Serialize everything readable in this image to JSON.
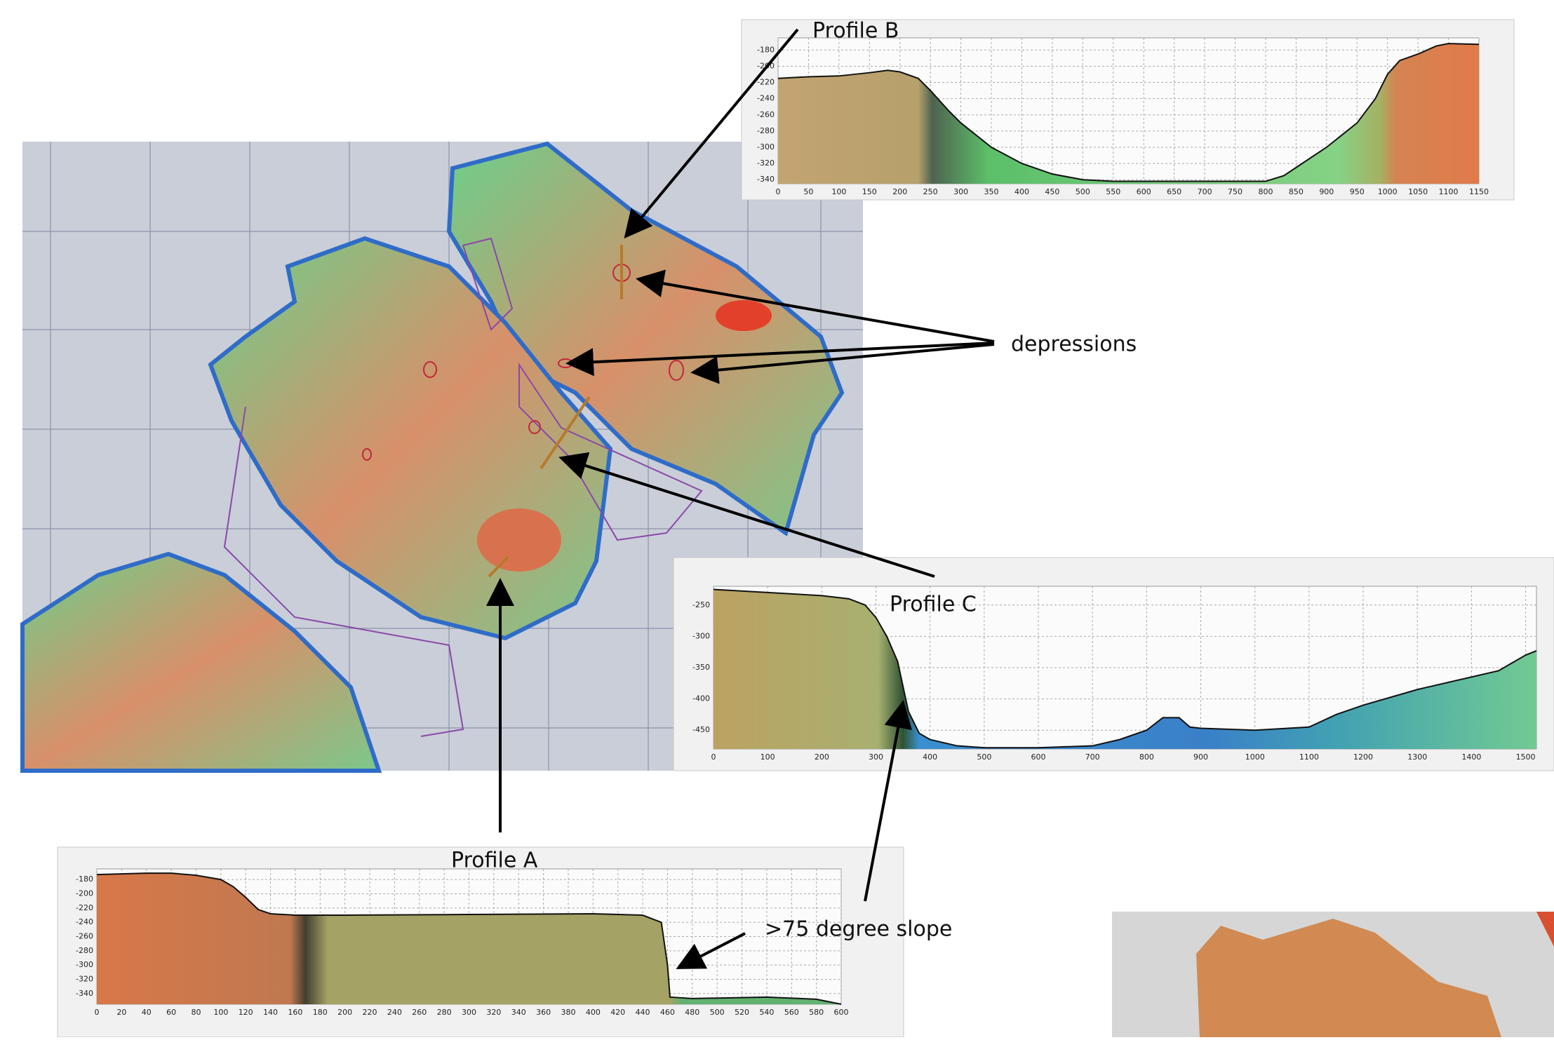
{
  "annotations": [
    "depressions",
    ">75 degree slope"
  ],
  "chart_data": [
    {
      "type": "area",
      "title": "Profile B",
      "x": [
        0,
        50,
        100,
        150,
        180,
        200,
        230,
        250,
        280,
        300,
        350,
        400,
        450,
        500,
        550,
        600,
        700,
        800,
        830,
        850,
        900,
        950,
        980,
        1000,
        1020,
        1050,
        1080,
        1100,
        1150
      ],
      "values": [
        -215,
        -213,
        -212,
        -208,
        -205,
        -207,
        -215,
        -230,
        -255,
        -270,
        -300,
        -320,
        -333,
        -340,
        -342,
        -342,
        -342,
        -342,
        -335,
        -325,
        -300,
        -270,
        -240,
        -210,
        -193,
        -185,
        -175,
        -172,
        -173
      ],
      "xlim": [
        0,
        1150
      ],
      "ylim": [
        -345,
        -165
      ],
      "xticks": [
        0,
        50,
        100,
        150,
        200,
        250,
        300,
        350,
        400,
        450,
        500,
        550,
        600,
        650,
        700,
        750,
        800,
        850,
        900,
        950,
        1000,
        1050,
        1100,
        1150
      ],
      "yticks": [
        -180,
        -200,
        -220,
        -240,
        -260,
        -280,
        -300,
        -320,
        -340
      ],
      "grid": true
    },
    {
      "type": "area",
      "title": "Profile C",
      "x": [
        0,
        100,
        200,
        250,
        280,
        300,
        320,
        340,
        350,
        360,
        380,
        400,
        450,
        500,
        600,
        700,
        750,
        800,
        830,
        860,
        880,
        900,
        1000,
        1100,
        1150,
        1200,
        1300,
        1400,
        1450,
        1500,
        1520
      ],
      "values": [
        -225,
        -230,
        -235,
        -240,
        -250,
        -270,
        -300,
        -340,
        -380,
        -420,
        -455,
        -465,
        -475,
        -478,
        -478,
        -475,
        -465,
        -450,
        -430,
        -430,
        -445,
        -447,
        -450,
        -445,
        -425,
        -410,
        -385,
        -365,
        -355,
        -330,
        -323
      ],
      "xlim": [
        0,
        1520
      ],
      "ylim": [
        -480,
        -220
      ],
      "xticks": [
        0,
        100,
        200,
        300,
        400,
        500,
        600,
        700,
        800,
        900,
        1000,
        1100,
        1200,
        1300,
        1400,
        1500
      ],
      "yticks": [
        -250,
        -300,
        -350,
        -400,
        -450
      ],
      "grid": true
    },
    {
      "type": "area",
      "title": "Profile A",
      "x": [
        0,
        20,
        40,
        60,
        80,
        100,
        110,
        120,
        130,
        140,
        160,
        200,
        300,
        400,
        440,
        455,
        460,
        462,
        480,
        540,
        580,
        600
      ],
      "values": [
        -173,
        -172,
        -171,
        -171,
        -174,
        -180,
        -190,
        -205,
        -222,
        -228,
        -230,
        -230,
        -229,
        -228,
        -230,
        -240,
        -300,
        -345,
        -347,
        -345,
        -348,
        -355
      ],
      "xlim": [
        0,
        600
      ],
      "ylim": [
        -355,
        -165
      ],
      "xticks": [
        0,
        20,
        40,
        60,
        80,
        100,
        120,
        140,
        160,
        180,
        200,
        220,
        240,
        260,
        280,
        300,
        320,
        340,
        360,
        380,
        400,
        420,
        440,
        460,
        480,
        500,
        520,
        540,
        560,
        580,
        600
      ],
      "yticks": [
        -180,
        -200,
        -220,
        -240,
        -260,
        -280,
        -300,
        -320,
        -340
      ],
      "grid": true
    }
  ]
}
